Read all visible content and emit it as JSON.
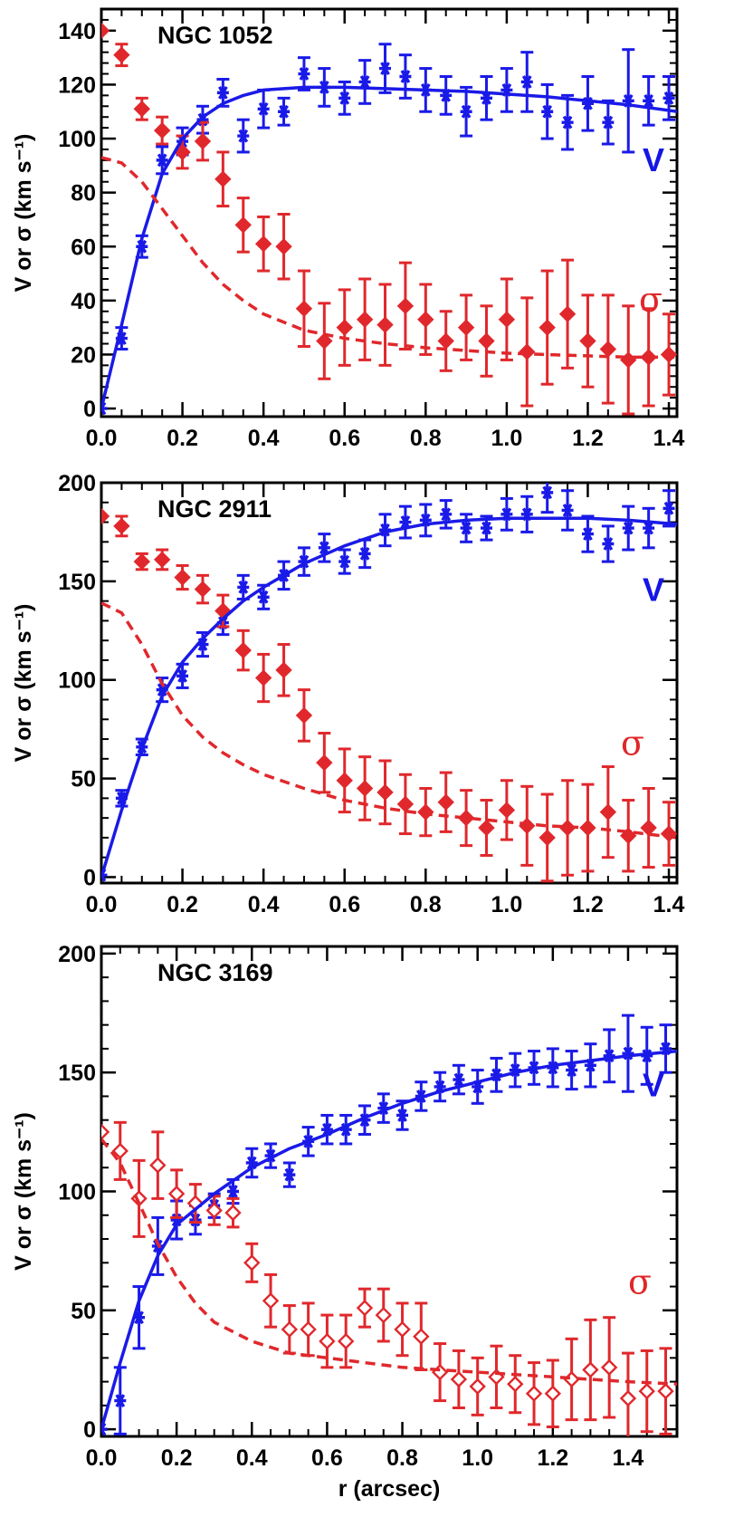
{
  "colors": {
    "v": "#1a1ae8",
    "sigma": "#e0282c",
    "axis": "#000000"
  },
  "chart_data": [
    {
      "type": "scatter",
      "title": "NGC 1052",
      "xlabel": "",
      "ylabel": "V or σ (km s⁻¹)",
      "xlim": [
        0,
        1.42
      ],
      "ylim": [
        -3,
        148
      ],
      "xticks": [
        "0.0",
        "0.2",
        "0.4",
        "0.6",
        "0.8",
        "1.0",
        "1.2",
        "1.4"
      ],
      "yticks": [
        "0",
        "20",
        "40",
        "60",
        "80",
        "100",
        "120",
        "140"
      ],
      "v_label": "V",
      "sigma_label": "σ",
      "series": [
        {
          "name": "V",
          "marker": "asterisk",
          "x": [
            0.0,
            0.05,
            0.1,
            0.15,
            0.2,
            0.25,
            0.3,
            0.35,
            0.4,
            0.45,
            0.5,
            0.55,
            0.6,
            0.65,
            0.7,
            0.75,
            0.8,
            0.85,
            0.9,
            0.95,
            1.0,
            1.05,
            1.1,
            1.15,
            1.2,
            1.25,
            1.3,
            1.35,
            1.4
          ],
          "y": [
            0,
            26,
            60,
            92,
            99,
            107,
            117,
            101,
            111,
            110,
            124,
            119,
            115,
            121,
            126,
            123,
            118,
            116,
            110,
            115,
            118,
            121,
            110,
            106,
            113,
            106,
            114,
            114,
            115
          ],
          "err": [
            0,
            4,
            4,
            5,
            5,
            5,
            5,
            6,
            7,
            5,
            6,
            7,
            6,
            8,
            9,
            8,
            8,
            7,
            9,
            8,
            8,
            11,
            10,
            10,
            10,
            8,
            19,
            9,
            8
          ]
        },
        {
          "name": "σ",
          "marker": "diamond",
          "filled": true,
          "x": [
            0.0,
            0.05,
            0.1,
            0.15,
            0.2,
            0.25,
            0.3,
            0.35,
            0.4,
            0.45,
            0.5,
            0.55,
            0.6,
            0.65,
            0.7,
            0.75,
            0.8,
            0.85,
            0.9,
            0.95,
            1.0,
            1.05,
            1.1,
            1.15,
            1.2,
            1.25,
            1.3,
            1.35,
            1.4
          ],
          "y": [
            140,
            131,
            111,
            103,
            95,
            99,
            85,
            68,
            61,
            60,
            37,
            25,
            30,
            33,
            31,
            38,
            33,
            25,
            30,
            25,
            33,
            21,
            30,
            35,
            25,
            22,
            18,
            19,
            20
          ],
          "err": [
            0,
            4,
            4,
            5,
            6,
            7,
            10,
            10,
            10,
            12,
            14,
            14,
            14,
            15,
            15,
            16,
            13,
            11,
            12,
            13,
            15,
            20,
            21,
            20,
            17,
            20,
            20,
            18,
            15
          ]
        },
        {
          "name": "V model",
          "style": "solid",
          "x": [
            0.0,
            0.05,
            0.1,
            0.15,
            0.2,
            0.25,
            0.3,
            0.35,
            0.4,
            0.5,
            0.6,
            0.7,
            0.8,
            0.9,
            1.0,
            1.1,
            1.2,
            1.3,
            1.42
          ],
          "y": [
            0,
            31,
            63,
            87,
            100,
            108,
            113,
            116,
            118,
            119,
            119,
            118.5,
            118,
            117.5,
            116.5,
            115.5,
            114,
            112.5,
            110
          ]
        },
        {
          "name": "σ model",
          "style": "dashed",
          "x": [
            0.0,
            0.05,
            0.1,
            0.15,
            0.2,
            0.25,
            0.3,
            0.35,
            0.4,
            0.5,
            0.6,
            0.7,
            0.8,
            0.9,
            1.0,
            1.1,
            1.2,
            1.3,
            1.42
          ],
          "y": [
            93,
            91,
            84,
            74,
            64,
            54,
            46,
            40,
            35,
            29,
            26,
            24,
            22.5,
            21.5,
            20.5,
            20,
            19.5,
            19,
            19
          ]
        }
      ]
    },
    {
      "type": "scatter",
      "title": "NGC 2911",
      "xlabel": "",
      "ylabel": "V or σ (km s⁻¹)",
      "xlim": [
        0,
        1.42
      ],
      "ylim": [
        -3,
        200
      ],
      "xticks": [
        "0.0",
        "0.2",
        "0.4",
        "0.6",
        "0.8",
        "1.0",
        "1.2",
        "1.4"
      ],
      "yticks": [
        "0",
        "50",
        "100",
        "150",
        "200"
      ],
      "v_label": "V",
      "sigma_label": "σ",
      "series": [
        {
          "name": "V",
          "marker": "asterisk",
          "x": [
            0.0,
            0.05,
            0.1,
            0.15,
            0.2,
            0.25,
            0.3,
            0.35,
            0.4,
            0.45,
            0.5,
            0.55,
            0.6,
            0.65,
            0.7,
            0.75,
            0.8,
            0.85,
            0.9,
            0.95,
            1.0,
            1.05,
            1.1,
            1.15,
            1.2,
            1.25,
            1.3,
            1.35,
            1.4
          ],
          "y": [
            1,
            40,
            66,
            95,
            102,
            118,
            129,
            147,
            142,
            153,
            160,
            167,
            160,
            164,
            176,
            180,
            181,
            184,
            177,
            177,
            184,
            184,
            195,
            186,
            174,
            169,
            177,
            177,
            187
          ],
          "err": [
            0,
            4,
            4,
            6,
            6,
            6,
            6,
            6,
            6,
            7,
            7,
            7,
            6,
            7,
            8,
            8,
            8,
            7,
            7,
            6,
            8,
            9,
            10,
            10,
            9,
            9,
            11,
            10,
            9
          ]
        },
        {
          "name": "σ",
          "marker": "diamond",
          "filled": true,
          "x": [
            0.0,
            0.05,
            0.1,
            0.15,
            0.2,
            0.25,
            0.3,
            0.35,
            0.4,
            0.45,
            0.5,
            0.55,
            0.6,
            0.65,
            0.7,
            0.75,
            0.8,
            0.85,
            0.9,
            0.95,
            1.0,
            1.05,
            1.1,
            1.15,
            1.2,
            1.25,
            1.3,
            1.35,
            1.4
          ],
          "y": [
            183,
            178,
            160,
            161,
            152,
            146,
            135,
            115,
            101,
            105,
            82,
            58,
            49,
            45,
            43,
            37,
            33,
            38,
            30,
            25,
            34,
            26,
            20,
            25,
            25,
            33,
            21,
            25,
            22
          ],
          "err": [
            0,
            5,
            4,
            5,
            6,
            7,
            8,
            10,
            12,
            13,
            13,
            15,
            16,
            16,
            16,
            15,
            12,
            15,
            14,
            14,
            15,
            20,
            22,
            24,
            22,
            23,
            18,
            20,
            16
          ]
        },
        {
          "name": "V model",
          "style": "solid",
          "x": [
            0.0,
            0.05,
            0.1,
            0.15,
            0.2,
            0.25,
            0.3,
            0.35,
            0.4,
            0.5,
            0.6,
            0.7,
            0.8,
            0.9,
            1.0,
            1.1,
            1.2,
            1.3,
            1.42
          ],
          "y": [
            0,
            34,
            65,
            92,
            109,
            121,
            131,
            140,
            147,
            159,
            168,
            175,
            179,
            181,
            182,
            182,
            182,
            181,
            179
          ]
        },
        {
          "name": "σ model",
          "style": "dashed",
          "x": [
            0.0,
            0.05,
            0.1,
            0.15,
            0.2,
            0.25,
            0.3,
            0.35,
            0.4,
            0.5,
            0.6,
            0.7,
            0.8,
            0.9,
            1.0,
            1.1,
            1.2,
            1.3,
            1.42
          ],
          "y": [
            139,
            134,
            118,
            98,
            82,
            71,
            63,
            57,
            52,
            45,
            39,
            35,
            32,
            30,
            28,
            26,
            25,
            23,
            20
          ]
        }
      ]
    },
    {
      "type": "scatter",
      "title": "NGC 3169",
      "xlabel": "r (arcsec)",
      "ylabel": "V or σ (km s⁻¹)",
      "xlim": [
        0,
        1.53
      ],
      "ylim": [
        -3,
        203
      ],
      "xticks": [
        "0.0",
        "0.2",
        "0.4",
        "0.6",
        "0.8",
        "1.0",
        "1.2",
        "1.4"
      ],
      "yticks": [
        "0",
        "50",
        "100",
        "150",
        "200"
      ],
      "v_label": "V",
      "sigma_label": "σ",
      "series": [
        {
          "name": "V",
          "marker": "asterisk",
          "x": [
            0.0,
            0.05,
            0.1,
            0.15,
            0.2,
            0.25,
            0.3,
            0.35,
            0.4,
            0.45,
            0.5,
            0.55,
            0.6,
            0.65,
            0.7,
            0.75,
            0.8,
            0.85,
            0.9,
            0.95,
            1.0,
            1.05,
            1.1,
            1.15,
            1.2,
            1.25,
            1.3,
            1.35,
            1.4,
            1.45,
            1.5
          ],
          "y": [
            0,
            12,
            47,
            77,
            88,
            88,
            94,
            100,
            112,
            115,
            107,
            121,
            126,
            126,
            130,
            135,
            132,
            140,
            144,
            147,
            144,
            149,
            151,
            152,
            152,
            151,
            153,
            157,
            158,
            157,
            160
          ],
          "err": [
            0,
            14,
            13,
            12,
            8,
            6,
            5,
            5,
            6,
            5,
            5,
            6,
            6,
            6,
            6,
            6,
            6,
            6,
            6,
            6,
            7,
            7,
            7,
            7,
            8,
            8,
            9,
            11,
            16,
            12,
            10
          ]
        },
        {
          "name": "σ",
          "marker": "diamond",
          "filled": false,
          "x": [
            0.0,
            0.05,
            0.1,
            0.15,
            0.2,
            0.25,
            0.3,
            0.35,
            0.4,
            0.45,
            0.5,
            0.55,
            0.6,
            0.65,
            0.7,
            0.75,
            0.8,
            0.85,
            0.9,
            0.95,
            1.0,
            1.05,
            1.1,
            1.15,
            1.2,
            1.25,
            1.3,
            1.35,
            1.4,
            1.45,
            1.5
          ],
          "y": [
            125,
            117,
            97,
            111,
            99,
            95,
            92,
            91,
            70,
            54,
            42,
            42,
            37,
            37,
            51,
            48,
            42,
            39,
            24,
            21,
            18,
            22,
            19,
            15,
            15,
            21,
            25,
            26,
            13,
            16,
            16
          ],
          "err": [
            0,
            12,
            16,
            14,
            10,
            8,
            6,
            6,
            8,
            11,
            10,
            11,
            11,
            11,
            8,
            11,
            11,
            14,
            12,
            12,
            12,
            13,
            12,
            13,
            14,
            17,
            21,
            21,
            19,
            17,
            18
          ]
        },
        {
          "name": "V model",
          "style": "solid",
          "x": [
            0.0,
            0.05,
            0.1,
            0.15,
            0.2,
            0.3,
            0.4,
            0.5,
            0.6,
            0.7,
            0.8,
            0.9,
            1.0,
            1.1,
            1.2,
            1.3,
            1.4,
            1.53
          ],
          "y": [
            0,
            28,
            54,
            73,
            86,
            99,
            110,
            118,
            124,
            131,
            137,
            142,
            146,
            150,
            153,
            155,
            157,
            159
          ]
        },
        {
          "name": "σ model",
          "style": "dashed",
          "x": [
            0.0,
            0.05,
            0.1,
            0.15,
            0.2,
            0.25,
            0.3,
            0.4,
            0.5,
            0.6,
            0.7,
            0.8,
            0.9,
            1.0,
            1.1,
            1.2,
            1.3,
            1.4,
            1.53
          ],
          "y": [
            122,
            112,
            95,
            78,
            64,
            53,
            45,
            37,
            32,
            30,
            28,
            26,
            25,
            24,
            23,
            22,
            21,
            20,
            19
          ]
        }
      ]
    }
  ]
}
